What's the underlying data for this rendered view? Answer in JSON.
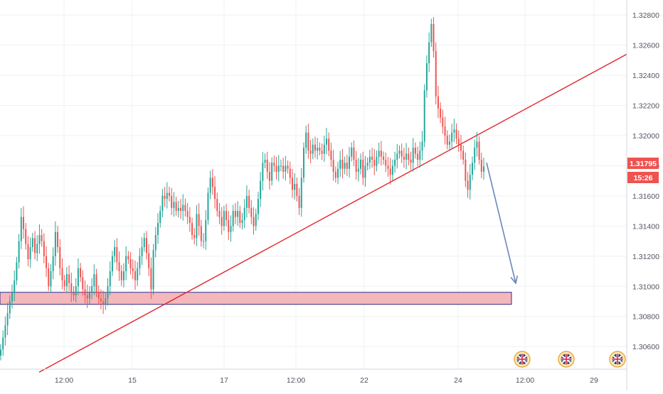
{
  "colors": {
    "up": "#26a69a",
    "down": "#ef5350",
    "grid": "#eef0f3",
    "axis_text": "#50535e",
    "trendline": "#e0242a",
    "zone_fill": "#f4b7bc",
    "zone_border": "#2a2e8f",
    "arrow": "#6b86b8",
    "price_tag": "#ef5350"
  },
  "price_tag": {
    "price": "1.31795",
    "countdown": "15:26"
  },
  "event_icons": [
    {
      "icon": "uk-flag-icon",
      "label": "GB"
    },
    {
      "icon": "uk-flag-icon",
      "label": "GB"
    },
    {
      "icon": "uk-flag-icon",
      "label": "GB"
    }
  ],
  "chart_data": {
    "type": "candlestick",
    "y_ticks": [
      "1.32800",
      "1.32600",
      "1.32400",
      "1.32200",
      "1.32000",
      "1.31800",
      "1.31600",
      "1.31400",
      "1.31200",
      "1.31000",
      "1.30800",
      "1.30600"
    ],
    "x_ticks": [
      "12:00",
      "15",
      "17",
      "12:00",
      "22",
      "24",
      "12:00",
      "29"
    ],
    "ylim": [
      1.3045,
      1.329
    ],
    "grid": true,
    "last_price": 1.31795,
    "support_zone": {
      "low": 1.3088,
      "high": 1.3096
    },
    "trendline": {
      "start_price": 1.3043,
      "end_price": 1.3254
    },
    "projection_arrow": {
      "from_price": 1.3182,
      "to_price": 1.3102
    },
    "closes": [
      1.3058,
      1.3066,
      1.3074,
      1.3082,
      1.309,
      1.3096,
      1.3104,
      1.3116,
      1.313,
      1.3146,
      1.3138,
      1.3128,
      1.3118,
      1.3126,
      1.3132,
      1.3122,
      1.3128,
      1.3134,
      1.313,
      1.312,
      1.3112,
      1.31,
      1.311,
      1.312,
      1.3136,
      1.3126,
      1.3112,
      1.3104,
      1.31,
      1.3108,
      1.3102,
      1.3096,
      1.3094,
      1.31,
      1.3112,
      1.3106,
      1.3098,
      1.3094,
      1.3092,
      1.3096,
      1.31,
      1.3108,
      1.3096,
      1.3092,
      1.309,
      1.3088,
      1.3092,
      1.31,
      1.311,
      1.312,
      1.3126,
      1.3116,
      1.311,
      1.3104,
      1.311,
      1.312,
      1.3118,
      1.3112,
      1.311,
      1.3104,
      1.3112,
      1.312,
      1.3126,
      1.3132,
      1.3122,
      1.3112,
      1.3098,
      1.3124,
      1.3134,
      1.3142,
      1.315,
      1.316,
      1.3158,
      1.3162,
      1.316,
      1.3152,
      1.3156,
      1.315,
      1.3152,
      1.315,
      1.3154,
      1.315,
      1.3146,
      1.3142,
      1.3134,
      1.3132,
      1.3148,
      1.314,
      1.313,
      1.313,
      1.3144,
      1.3162,
      1.3172,
      1.3166,
      1.3158,
      1.315,
      1.3146,
      1.314,
      1.315,
      1.3144,
      1.3136,
      1.314,
      1.315,
      1.3146,
      1.315,
      1.3142,
      1.3144,
      1.3152,
      1.316,
      1.3152,
      1.3146,
      1.314,
      1.3148,
      1.3158,
      1.317,
      1.3182,
      1.3184,
      1.3176,
      1.317,
      1.3182,
      1.318,
      1.3176,
      1.318,
      1.318,
      1.3176,
      1.318,
      1.3178,
      1.3172,
      1.3164,
      1.3168,
      1.316,
      1.3152,
      1.3172,
      1.3192,
      1.3202,
      1.319,
      1.3188,
      1.3194,
      1.319,
      1.3192,
      1.319,
      1.3188,
      1.3194,
      1.3198,
      1.319,
      1.3184,
      1.3176,
      1.3172,
      1.3178,
      1.3184,
      1.3178,
      1.3182,
      1.3178,
      1.3186,
      1.3192,
      1.3184,
      1.3176,
      1.3178,
      1.3184,
      1.3172,
      1.318,
      1.3182,
      1.3186,
      1.3184,
      1.318,
      1.3186,
      1.319,
      1.3186,
      1.3184,
      1.318,
      1.3178,
      1.3174,
      1.318,
      1.3184,
      1.3188,
      1.319,
      1.3186,
      1.3184,
      1.3188,
      1.3184,
      1.3182,
      1.3192,
      1.3188,
      1.3184,
      1.319,
      1.3196,
      1.323,
      1.3248,
      1.3262,
      1.3274,
      1.3256,
      1.3226,
      1.3218,
      1.3212,
      1.3206,
      1.32,
      1.3194,
      1.3196,
      1.3202,
      1.3204,
      1.3198,
      1.3194,
      1.319,
      1.3184,
      1.317,
      1.3164,
      1.3174,
      1.3182,
      1.3192,
      1.3196,
      1.3184,
      1.3176,
      1.31795
    ]
  }
}
